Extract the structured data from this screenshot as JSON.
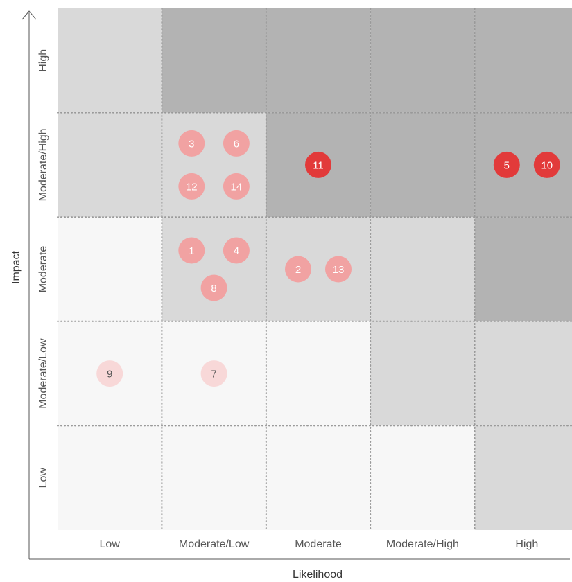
{
  "chart_data": {
    "type": "heatmap",
    "title": "",
    "xlabel": "Likelihood",
    "ylabel": "Impact",
    "x_categories": [
      "Low",
      "Moderate/Low",
      "Moderate",
      "Moderate/High",
      "High"
    ],
    "y_categories": [
      "Low",
      "Moderate/Low",
      "Moderate",
      "Moderate/High",
      "High"
    ],
    "cell_levels": [
      [
        0,
        0,
        0,
        0,
        1
      ],
      [
        0,
        0,
        0,
        1,
        1
      ],
      [
        0,
        1,
        1,
        1,
        2
      ],
      [
        1,
        1,
        2,
        2,
        2
      ],
      [
        1,
        2,
        2,
        2,
        2
      ]
    ],
    "level_colors": [
      "#f7f7f7",
      "#d9d9d9",
      "#b3b3b3"
    ],
    "grid": "dotted",
    "risks": [
      {
        "id": "1",
        "likelihood": "Moderate/Low",
        "impact": "Moderate",
        "severity": "medium"
      },
      {
        "id": "2",
        "likelihood": "Moderate",
        "impact": "Moderate",
        "severity": "medium"
      },
      {
        "id": "3",
        "likelihood": "Moderate/Low",
        "impact": "Moderate/High",
        "severity": "medium"
      },
      {
        "id": "4",
        "likelihood": "Moderate/Low",
        "impact": "Moderate",
        "severity": "medium"
      },
      {
        "id": "5",
        "likelihood": "High",
        "impact": "Moderate/High",
        "severity": "high"
      },
      {
        "id": "6",
        "likelihood": "Moderate/Low",
        "impact": "Moderate/High",
        "severity": "medium"
      },
      {
        "id": "7",
        "likelihood": "Moderate/Low",
        "impact": "Moderate/Low",
        "severity": "low"
      },
      {
        "id": "8",
        "likelihood": "Moderate/Low",
        "impact": "Moderate",
        "severity": "medium"
      },
      {
        "id": "9",
        "likelihood": "Low",
        "impact": "Moderate/Low",
        "severity": "low"
      },
      {
        "id": "10",
        "likelihood": "High",
        "impact": "Moderate/High",
        "severity": "high"
      },
      {
        "id": "11",
        "likelihood": "Moderate",
        "impact": "Moderate/High",
        "severity": "high"
      },
      {
        "id": "12",
        "likelihood": "Moderate/Low",
        "impact": "Moderate/High",
        "severity": "medium"
      },
      {
        "id": "13",
        "likelihood": "Moderate",
        "impact": "Moderate",
        "severity": "medium"
      },
      {
        "id": "14",
        "likelihood": "Moderate/Low",
        "impact": "Moderate/High",
        "severity": "medium"
      }
    ],
    "severity_colors": {
      "high": {
        "fill": "#e23a3a",
        "text": "#ffffff"
      },
      "medium": {
        "fill": "#f1a2a2",
        "text": "#ffffff"
      },
      "low": {
        "fill": "#f8d8d8",
        "text": "#555555"
      }
    },
    "axis_color": "#555555",
    "grid_color": "#999999"
  }
}
